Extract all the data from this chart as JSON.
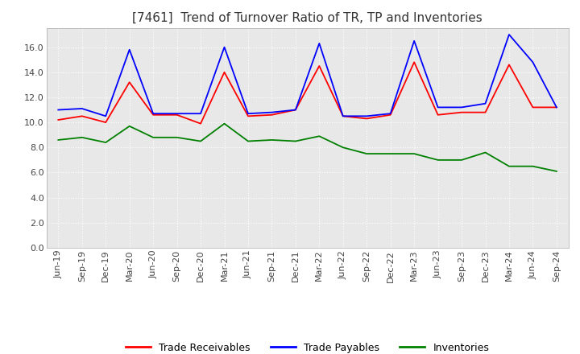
{
  "title": "[7461]  Trend of Turnover Ratio of TR, TP and Inventories",
  "xlabels": [
    "Jun-19",
    "Sep-19",
    "Dec-19",
    "Mar-20",
    "Jun-20",
    "Sep-20",
    "Dec-20",
    "Mar-21",
    "Jun-21",
    "Sep-21",
    "Dec-21",
    "Mar-22",
    "Jun-22",
    "Sep-22",
    "Dec-22",
    "Mar-23",
    "Jun-23",
    "Sep-23",
    "Dec-23",
    "Mar-24",
    "Jun-24",
    "Sep-24"
  ],
  "trade_receivables": [
    10.2,
    10.5,
    10.0,
    13.2,
    10.6,
    10.6,
    9.9,
    14.0,
    10.5,
    10.6,
    11.0,
    14.5,
    10.5,
    10.3,
    10.6,
    14.8,
    10.6,
    10.8,
    10.8,
    14.6,
    11.2,
    11.2
  ],
  "trade_payables": [
    11.0,
    11.1,
    10.5,
    15.8,
    10.7,
    10.7,
    10.7,
    16.0,
    10.7,
    10.8,
    11.0,
    16.3,
    10.5,
    10.5,
    10.7,
    16.5,
    11.2,
    11.2,
    11.5,
    17.0,
    14.8,
    11.2
  ],
  "inventories": [
    8.6,
    8.8,
    8.4,
    9.7,
    8.8,
    8.8,
    8.5,
    9.9,
    8.5,
    8.6,
    8.5,
    8.9,
    8.0,
    7.5,
    7.5,
    7.5,
    7.0,
    7.0,
    7.6,
    6.5,
    6.5,
    6.1
  ],
  "tr_color": "#ff0000",
  "tp_color": "#0000ff",
  "inv_color": "#008000",
  "ylim": [
    0.0,
    17.5
  ],
  "yticks": [
    0.0,
    2.0,
    4.0,
    6.0,
    8.0,
    10.0,
    12.0,
    14.0,
    16.0
  ],
  "plot_bg": "#e8e8e8",
  "fig_bg": "#ffffff",
  "grid_color": "#ffffff",
  "title_fontsize": 11,
  "legend_fontsize": 9,
  "tick_fontsize": 8
}
